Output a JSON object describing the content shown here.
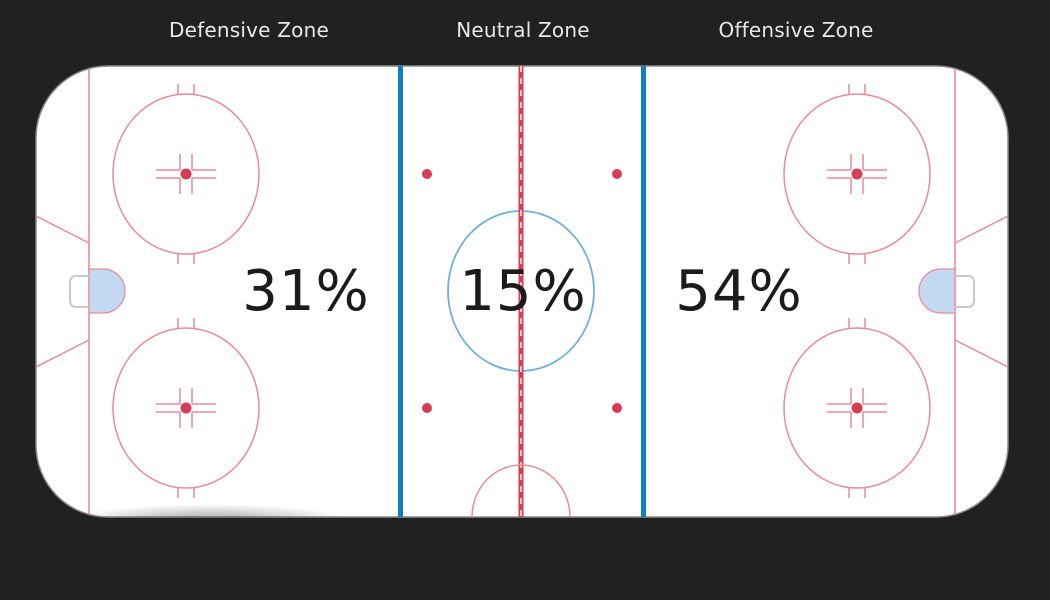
{
  "zones": {
    "defensive": {
      "label": "Defensive Zone",
      "percent": "31%"
    },
    "neutral": {
      "label": "Neutral Zone",
      "percent": "15%"
    },
    "offensive": {
      "label": "Offensive Zone",
      "percent": "54%"
    }
  },
  "colors": {
    "background": "#212121",
    "ice": "#ffffff",
    "red_line": "#d83b55",
    "red_markings": "#e98b97",
    "blue_line": "#0f7fc0",
    "center_circle": "#6fb2d8",
    "crease": "#c2d9f1",
    "label_text": "#e8e8e8",
    "percent_text": "#1b1b1b"
  }
}
